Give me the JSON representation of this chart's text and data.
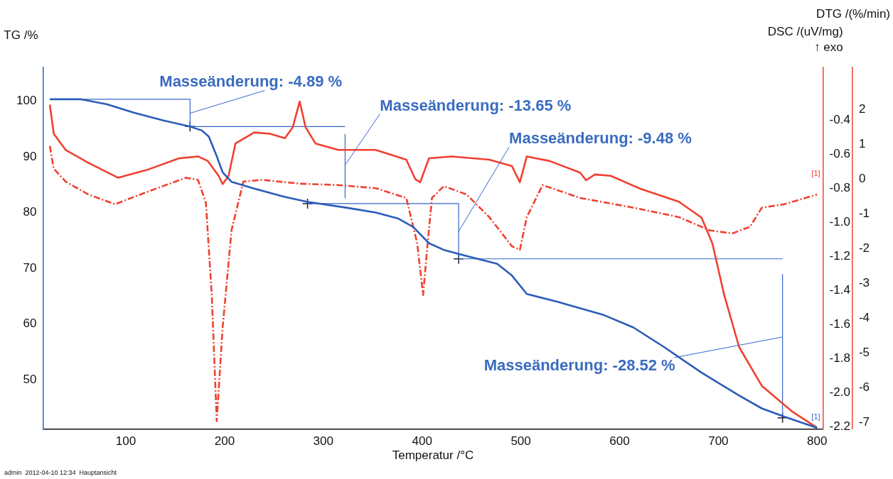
{
  "chart_data": {
    "type": "line",
    "xlabel": "Temperatur /°C",
    "ylabel": "TG /%",
    "y2label": "DSC /(uV/mg)\n↑ exo",
    "y3label": "DTG /(%/min)",
    "xlim": [
      16,
      806
    ],
    "xticks": [
      100,
      200,
      300,
      400,
      500,
      600,
      700,
      800
    ],
    "ylim": [
      41.2,
      106
    ],
    "yticks": [
      50,
      60,
      70,
      80,
      90,
      100
    ],
    "y2lim": [
      -2.215,
      -0.09
    ],
    "y2ticks": [
      -0.4,
      -0.6,
      -0.8,
      {
        "value": -1,
        "label": "-1.0"
      },
      -1.2,
      -1.4,
      -1.6,
      -1.8,
      {
        "value": -2,
        "label": "-2.0"
      },
      -2.2
    ],
    "y3lim": [
      -7.19,
      3.2
    ],
    "y3ticks": [
      -7,
      -6,
      -5,
      -4,
      -3,
      -2,
      -1,
      0,
      1,
      2
    ],
    "grid": false,
    "legend": false,
    "marker": "none",
    "series": [
      {
        "color": "#2a5cb8",
        "x": [
          23,
          54,
          81,
          108,
          138,
          165,
          177,
          184,
          192,
          198,
          207,
          230,
          261,
          284,
          322,
          353,
          376,
          391,
          407,
          422,
          445,
          476,
          491,
          506,
          537,
          583,
          614,
          645,
          683,
          721,
          744,
          767,
          800
        ],
        "values": [
          100.3,
          100.3,
          99.4,
          97.9,
          96.5,
          95.4,
          94.7,
          93.6,
          90.1,
          87.2,
          85.5,
          84.3,
          82.8,
          81.9,
          80.9,
          80,
          78.9,
          77.4,
          74.5,
          73.3,
          72.2,
          70.8,
          68.7,
          65.4,
          64,
          61.7,
          59.4,
          55.9,
          51.3,
          47.2,
          44.9,
          43.4,
          41.4
        ]
      },
      {
        "color": "#f04030",
        "axis": "y2",
        "x": [
          23,
          27,
          39,
          62,
          92,
          123,
          154,
          173,
          183,
          194,
          198,
          204,
          211,
          230,
          246,
          261,
          269,
          276,
          282,
          292,
          315,
          353,
          384,
          393,
          398,
          407,
          430,
          468,
          491,
          499,
          506,
          529,
          560,
          566,
          575,
          591,
          621,
          660,
          683,
          694,
          706,
          721,
          744,
          775,
          800
        ],
        "values": [
          -0.309,
          -0.48,
          -0.575,
          -0.65,
          -0.738,
          -0.689,
          -0.624,
          -0.613,
          -0.64,
          -0.727,
          -0.776,
          -0.727,
          -0.537,
          -0.472,
          -0.48,
          -0.506,
          -0.442,
          -0.29,
          -0.442,
          -0.537,
          -0.575,
          -0.575,
          -0.632,
          -0.746,
          -0.765,
          -0.624,
          -0.613,
          -0.632,
          -0.67,
          -0.765,
          -0.613,
          -0.64,
          -0.708,
          -0.753,
          -0.719,
          -0.727,
          -0.803,
          -0.879,
          -0.973,
          -1.125,
          -1.429,
          -1.733,
          -1.961,
          -2.113,
          -2.208
        ]
      },
      {
        "color": "#f04030",
        "axis": "y3",
        "line_style": "dashed",
        "x": [
          23,
          27,
          39,
          62,
          89,
          123,
          161,
          173,
          181,
          187,
          192,
          198,
          207,
          219,
          238,
          276,
          315,
          353,
          384,
          395,
          401,
          405,
          410,
          422,
          445,
          468,
          491,
          499,
          506,
          522,
          560,
          614,
          660,
          691,
          714,
          732,
          744,
          767,
          800
        ],
        "values": [
          0.94,
          0.29,
          -0.08,
          -0.45,
          -0.73,
          -0.36,
          0.03,
          -0.03,
          -0.68,
          -3.34,
          -6.96,
          -4.27,
          -1.48,
          -0.08,
          -0.03,
          -0.14,
          -0.18,
          -0.27,
          -0.55,
          -1.85,
          -3.34,
          -2.04,
          -0.55,
          -0.21,
          -0.45,
          -1.1,
          -1.94,
          -2.04,
          -1.1,
          -0.18,
          -0.55,
          -0.83,
          -1.1,
          -1.48,
          -1.57,
          -1.38,
          -0.83,
          -0.73,
          -0.45
        ]
      },
      {
        "color": "#3366cc",
        "x": [
          23,
          165
        ],
        "values": [
          100.3,
          100.3
        ]
      },
      {
        "color": "#3366cc",
        "x": [
          165,
          322
        ],
        "values": [
          95.4,
          95.4
        ]
      },
      {
        "color": "#3366cc",
        "x": [
          284,
          437
        ],
        "values": [
          81.6,
          81.6
        ]
      },
      {
        "color": "#3366cc",
        "x": [
          437,
          765
        ],
        "values": [
          71.7,
          71.7
        ]
      },
      {
        "color": "#3366cc",
        "x": [
          165,
          165
        ],
        "values": [
          100.3,
          95.4
        ]
      },
      {
        "color": "#3366cc",
        "x": [
          322,
          322
        ],
        "values": [
          94,
          82.6
        ]
      },
      {
        "color": "#3366cc",
        "x": [
          437,
          437
        ],
        "values": [
          81.6,
          71.7
        ]
      },
      {
        "color": "#3366cc",
        "x": [
          765,
          765
        ],
        "values": [
          68.9,
          43.8
        ]
      },
      {
        "type": "scatter",
        "marker": "cross",
        "color": "#222222",
        "x": [
          165,
          284,
          437,
          765
        ],
        "values": [
          95.4,
          81.6,
          71.7,
          43.2
        ]
      }
    ],
    "annotations": [
      {
        "text": "Masseänderung: -4.89 %",
        "x": 165,
        "y": 97.8
      },
      {
        "text": "Masseänderung: -13.65 %",
        "x": 322,
        "y": 88.5
      },
      {
        "text": "Masseänderung: -9.48 %",
        "x": 437,
        "y": 76.6
      },
      {
        "text": "Masseänderung: -28.52 %",
        "x": 765,
        "y": 57.7
      },
      "[1]",
      "[1]",
      "admin  2012-04-10 12:34  Hauptansicht"
    ]
  }
}
